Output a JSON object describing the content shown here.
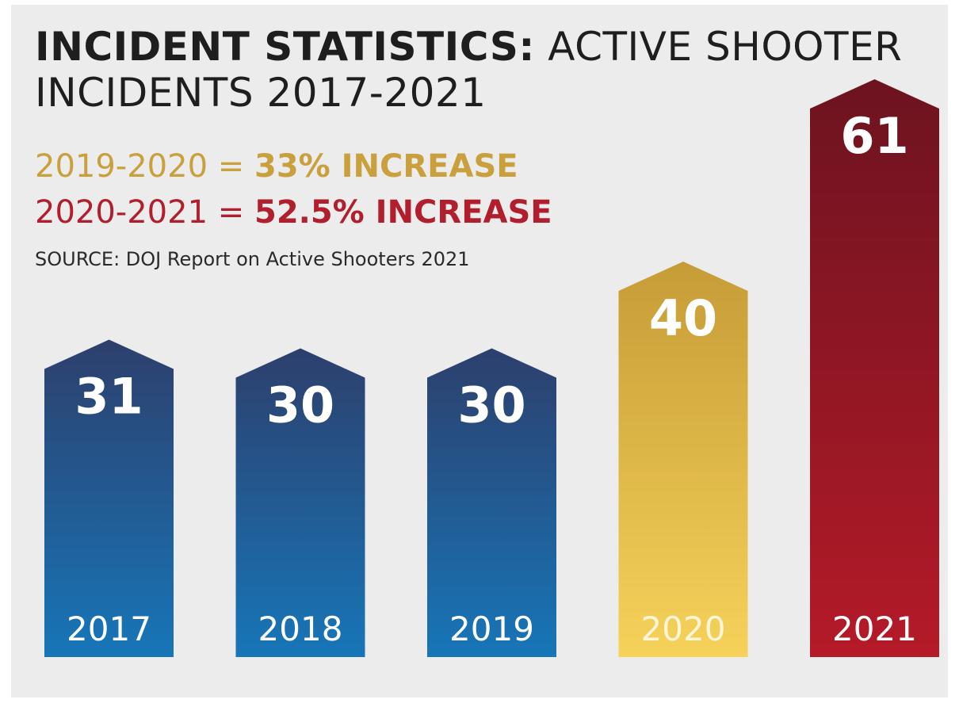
{
  "title": {
    "bold": "INCIDENT STATISTICS:",
    "rest": " ACTIVE SHOOTER INCIDENTS 2017-2021"
  },
  "stats": [
    {
      "period": "2019-2020 = ",
      "change": "33% INCREASE",
      "color": "#c9a03c"
    },
    {
      "period": "2020-2021 = ",
      "change": "52.5% INCREASE",
      "color": "#b11f2e"
    }
  ],
  "source": "SOURCE: DOJ Report on Active Shooters 2021",
  "colors": {
    "blue_top": "#2d3f6c",
    "blue_bottom": "#1776b8",
    "gold_top": "#c69c37",
    "gold_bottom": "#f6d25a",
    "red_top": "#6d1320",
    "red_bottom": "#b51a28"
  },
  "chart_data": {
    "type": "bar",
    "categories": [
      "2017",
      "2018",
      "2019",
      "2020",
      "2021"
    ],
    "values": [
      31,
      30,
      30,
      40,
      61
    ],
    "bar_styles": [
      "blue",
      "blue",
      "blue",
      "gold",
      "red"
    ],
    "title": "INCIDENT STATISTICS: ACTIVE SHOOTER INCIDENTS 2017-2021",
    "xlabel": "",
    "ylabel": "",
    "grid": false,
    "legend": "none"
  }
}
